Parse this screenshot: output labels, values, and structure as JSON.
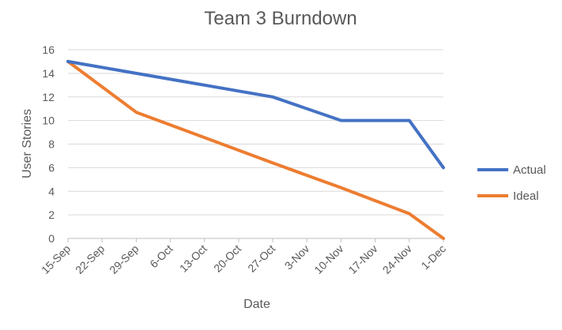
{
  "chart_data": {
    "type": "line",
    "title": "Team 3 Burndown",
    "xlabel": "Date",
    "ylabel": "User Stories",
    "ylim": [
      0,
      16
    ],
    "yticks": [
      "0",
      "2",
      "4",
      "6",
      "8",
      "10",
      "12",
      "14",
      "16"
    ],
    "categories": [
      "15-Sep",
      "22-Sep",
      "29-Sep",
      "6-Oct",
      "13-Oct",
      "20-Oct",
      "27-Oct",
      "3-Nov",
      "10-Nov",
      "17-Nov",
      "24-Nov",
      "1-Dec"
    ],
    "grid": true,
    "legend_position": "right",
    "series": [
      {
        "name": "Actual",
        "color": "#4472C4",
        "points": [
          {
            "x": "15-Sep",
            "y": 15
          },
          {
            "x": "29-Sep",
            "y": 14
          },
          {
            "x": "27-Oct",
            "y": 12
          },
          {
            "x": "10-Nov",
            "y": 10
          },
          {
            "x": "24-Nov",
            "y": 10
          },
          {
            "x": "1-Dec",
            "y": 6
          }
        ]
      },
      {
        "name": "Ideal",
        "color": "#ED7D31",
        "points": [
          {
            "x": "15-Sep",
            "y": 15
          },
          {
            "x": "29-Sep",
            "y": 10.7
          },
          {
            "x": "27-Oct",
            "y": 6.4
          },
          {
            "x": "10-Nov",
            "y": 4.3
          },
          {
            "x": "24-Nov",
            "y": 2.1
          },
          {
            "x": "1-Dec",
            "y": 0
          }
        ]
      }
    ]
  }
}
